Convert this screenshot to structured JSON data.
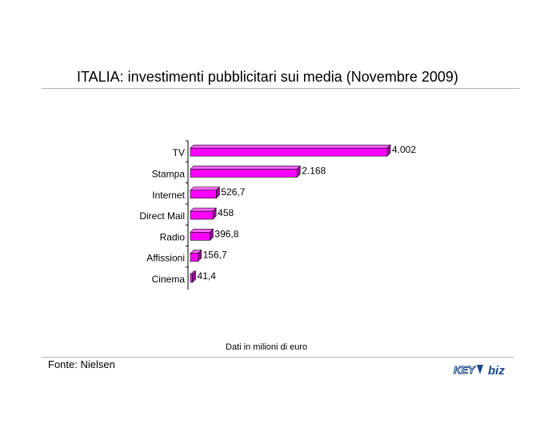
{
  "title": "ITALIA: investimenti pubblicitari sui media (Novembre 2009)",
  "note": "Dati in milioni di euro",
  "source": "Fonte: Nielsen",
  "logo": {
    "text_left": "KEY",
    "text_right": "biz"
  },
  "colors": {
    "bar": "#ff00ff",
    "bar_dark": "#a000a0",
    "bar_top": "#ff66ff"
  },
  "chart_data": {
    "type": "bar",
    "orientation": "horizontal",
    "title": "ITALIA: investimenti pubblicitari sui media (Novembre 2009)",
    "categories": [
      "TV",
      "Stampa",
      "Internet",
      "Direct Mail",
      "Radio",
      "Affissioni",
      "Cinema"
    ],
    "values": [
      4002,
      2168,
      526.7,
      458,
      396.8,
      156.7,
      41.4
    ],
    "value_labels": [
      "4.002",
      "2.168",
      "526,7",
      "458",
      "396,8",
      "156,7",
      "41,4"
    ],
    "xlim": [
      0,
      4002
    ],
    "grid": false,
    "legend": "none"
  }
}
